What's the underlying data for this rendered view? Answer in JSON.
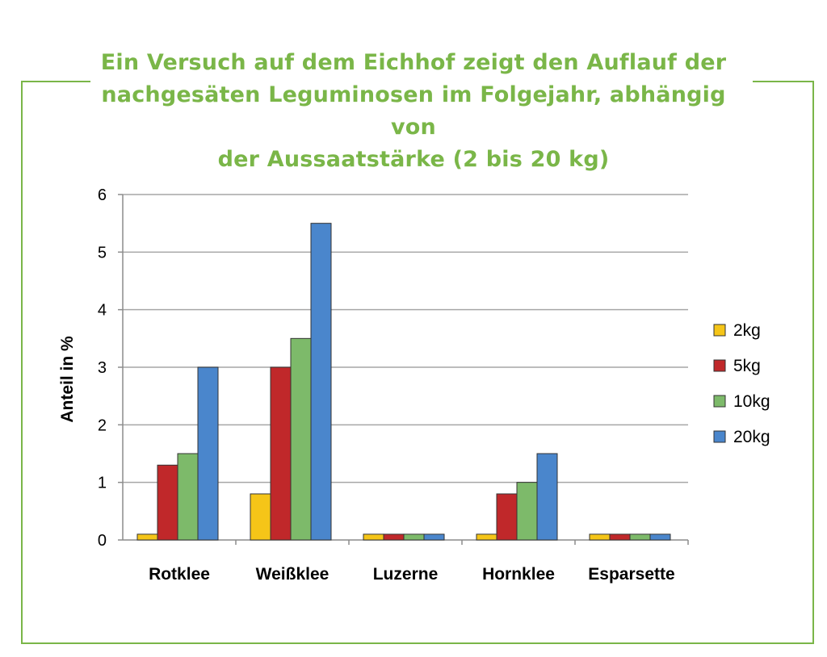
{
  "title": "Ein Versuch auf dem Eichhof zeigt den Auflauf der\nnachgesäten Leguminosen im Folgejahr, abhängig von\nder Aussaatstärke (2 bis 20 kg)",
  "colors": {
    "frame": "#7ab648",
    "title": "#7ab648",
    "grid": "#a6a6a6"
  },
  "chart_data": {
    "type": "bar",
    "ylabel": "Anteil in %",
    "ylim": [
      0,
      6
    ],
    "yticks": [
      "0",
      "1",
      "2",
      "3",
      "4",
      "5",
      "6"
    ],
    "grid": true,
    "legend_position": "right",
    "categories": [
      "Rotklee",
      "Weißklee",
      "Luzerne",
      "Hornklee",
      "Esparsette"
    ],
    "series": [
      {
        "name": "2kg",
        "color": "#f5c518",
        "values": [
          0.1,
          0.8,
          0.1,
          0.1,
          0.1
        ]
      },
      {
        "name": "5kg",
        "color": "#c0282a",
        "values": [
          1.3,
          3.0,
          0.1,
          0.8,
          0.1
        ]
      },
      {
        "name": "10kg",
        "color": "#7dba6a",
        "values": [
          1.5,
          3.5,
          0.1,
          1.0,
          0.1
        ]
      },
      {
        "name": "20kg",
        "color": "#4a86cc",
        "values": [
          3.0,
          5.5,
          0.1,
          1.5,
          0.1
        ]
      }
    ]
  }
}
